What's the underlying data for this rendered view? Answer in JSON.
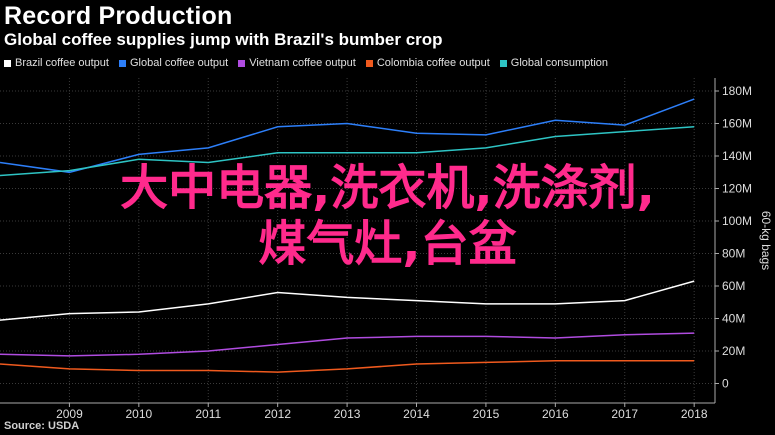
{
  "header": {
    "title": "Record Production",
    "subtitle": "Global coffee supplies jump with Brazil's bumber crop"
  },
  "overlay": {
    "line1": "大中电器,洗衣机,洗涤剂,",
    "line2": "煤气灶,台盆"
  },
  "footer": {
    "source": "Source: USDA"
  },
  "chart_data": {
    "type": "line",
    "title": "Record Production",
    "subtitle": "Global coffee supplies jump with Brazil's bumber crop",
    "ylabel": "60-kg bags",
    "x": [
      2008,
      2009,
      2010,
      2011,
      2012,
      2013,
      2014,
      2015,
      2016,
      2017,
      2018
    ],
    "xtick_labels": [
      "2009",
      "2010",
      "2011",
      "2012",
      "2013",
      "2014",
      "2015",
      "2016",
      "2017",
      "2018"
    ],
    "ytick_values": [
      0,
      20,
      40,
      60,
      80,
      100,
      120,
      140,
      160,
      180
    ],
    "ytick_labels": [
      "0",
      "20M",
      "40M",
      "60M",
      "80M",
      "100M",
      "120M",
      "140M",
      "160M",
      "180M"
    ],
    "xlim": [
      2008,
      2018.3
    ],
    "ylim": [
      -12,
      188
    ],
    "grid": true,
    "legend_position": "top-left",
    "series": [
      {
        "name": "Brazil coffee output",
        "color": "#ffffff",
        "values": [
          39,
          43,
          44,
          49,
          56,
          53,
          51,
          49,
          49,
          51,
          63
        ]
      },
      {
        "name": "Global coffee output",
        "color": "#2d7ff9",
        "values": [
          136,
          130,
          141,
          145,
          158,
          160,
          154,
          153,
          162,
          159,
          175
        ]
      },
      {
        "name": "Vietnam coffee output",
        "color": "#b04ce0",
        "values": [
          18,
          17,
          18,
          20,
          24,
          28,
          29,
          29,
          28,
          30,
          31
        ]
      },
      {
        "name": "Colombia coffee output",
        "color": "#f05a1e",
        "values": [
          12,
          9,
          8,
          8,
          7,
          9,
          12,
          13,
          14,
          14,
          14
        ]
      },
      {
        "name": "Global consumption",
        "color": "#2ec4c4",
        "values": [
          128,
          131,
          138,
          136,
          142,
          142,
          142,
          145,
          152,
          155,
          158
        ]
      }
    ]
  }
}
